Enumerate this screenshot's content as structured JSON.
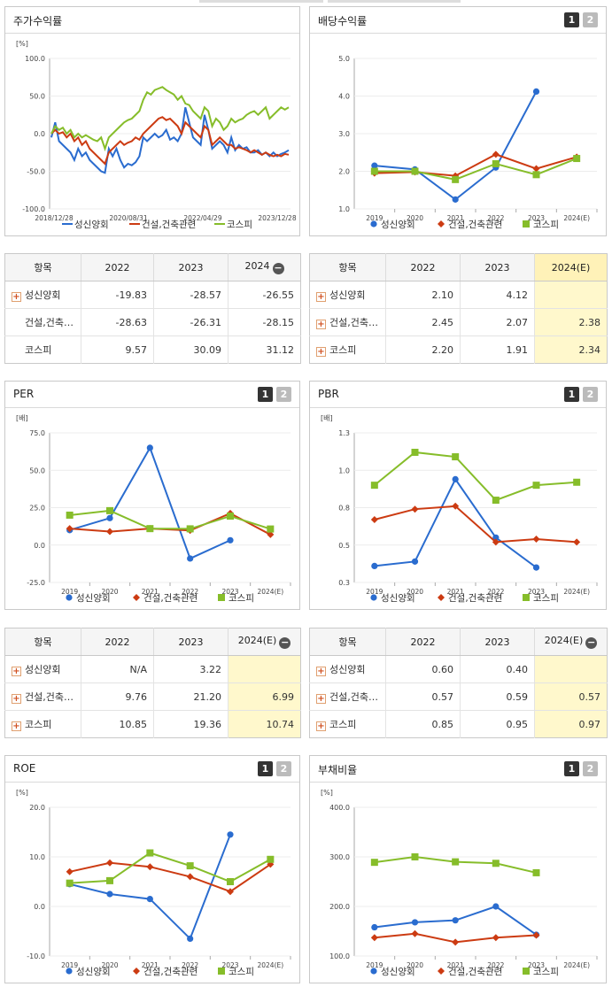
{
  "legend_series": [
    "성신양회",
    "건설,건축관련",
    "코스피"
  ],
  "colors": {
    "s1": "#2a6ccf",
    "s2": "#cc3b12",
    "s3": "#86bd2a"
  },
  "pager": [
    "1",
    "2"
  ],
  "panels": {
    "stock": {
      "title": "주가수익률"
    },
    "div": {
      "title": "배당수익률"
    },
    "per": {
      "title": "PER"
    },
    "pbr": {
      "title": "PBR"
    },
    "roe": {
      "title": "ROE"
    },
    "debt": {
      "title": "부채비율"
    }
  },
  "tables": {
    "stock": {
      "head": [
        "항목",
        "2022",
        "2023",
        "2024"
      ],
      "rows": [
        {
          "name": "성신양회",
          "vals": [
            "-19.83",
            "-28.57",
            "-26.55"
          ]
        },
        {
          "name": "건설,건축…",
          "vals": [
            "-28.63",
            "-26.31",
            "-28.15"
          ]
        },
        {
          "name": "코스피",
          "vals": [
            "9.57",
            "30.09",
            "31.12"
          ]
        }
      ]
    },
    "div": {
      "head": [
        "항목",
        "2022",
        "2023",
        "2024(E)"
      ],
      "rows": [
        {
          "name": "성신양회",
          "vals": [
            "2.10",
            "4.12",
            ""
          ]
        },
        {
          "name": "건설,건축…",
          "vals": [
            "2.45",
            "2.07",
            "2.38"
          ]
        },
        {
          "name": "코스피",
          "vals": [
            "2.20",
            "1.91",
            "2.34"
          ]
        }
      ]
    },
    "per": {
      "head": [
        "항목",
        "2022",
        "2023",
        "2024(E)"
      ],
      "rows": [
        {
          "name": "성신양회",
          "vals": [
            "N/A",
            "3.22",
            ""
          ]
        },
        {
          "name": "건설,건축…",
          "vals": [
            "9.76",
            "21.20",
            "6.99"
          ]
        },
        {
          "name": "코스피",
          "vals": [
            "10.85",
            "19.36",
            "10.74"
          ]
        }
      ]
    },
    "pbr": {
      "head": [
        "항목",
        "2022",
        "2023",
        "2024(E)"
      ],
      "rows": [
        {
          "name": "성신양회",
          "vals": [
            "0.60",
            "0.40",
            ""
          ]
        },
        {
          "name": "건설,건축…",
          "vals": [
            "0.57",
            "0.59",
            "0.57"
          ]
        },
        {
          "name": "코스피",
          "vals": [
            "0.85",
            "0.95",
            "0.97"
          ]
        }
      ]
    }
  },
  "chart_data": [
    {
      "id": "stock",
      "type": "line",
      "ylabel": "[%]",
      "ylim": [
        -100,
        100
      ],
      "yticks": [
        "100.0",
        "50.0",
        "0.0",
        "-50.0",
        "-100.0"
      ],
      "xlabels": [
        "2018/12/28",
        "2020/08/31",
        "2022/04/29",
        "2023/12/28"
      ],
      "series": [
        {
          "name": "성신양회",
          "values": [
            -5,
            15,
            -10,
            -15,
            -20,
            -25,
            -35,
            -20,
            -30,
            -25,
            -35,
            -40,
            -45,
            -50,
            -52,
            -20,
            -30,
            -20,
            -35,
            -45,
            -40,
            -42,
            -38,
            -30,
            -5,
            -10,
            -5,
            0,
            -5,
            -2,
            5,
            -8,
            -5,
            -10,
            0,
            35,
            15,
            -5,
            -10,
            -15,
            25,
            5,
            -20,
            -15,
            -10,
            -15,
            -25,
            -5,
            -22,
            -15,
            -20,
            -18,
            -25,
            -25,
            -22,
            -28,
            -25,
            -30,
            -25,
            -30,
            -27,
            -25,
            -22
          ]
        },
        {
          "name": "건설,건축관련",
          "values": [
            0,
            5,
            0,
            2,
            -5,
            0,
            -10,
            -5,
            -15,
            -10,
            -20,
            -25,
            -30,
            -35,
            -40,
            -25,
            -20,
            -15,
            -10,
            -15,
            -12,
            -10,
            -5,
            -8,
            0,
            5,
            10,
            15,
            20,
            22,
            18,
            20,
            15,
            10,
            0,
            15,
            10,
            5,
            0,
            -5,
            10,
            5,
            -15,
            -10,
            -5,
            -10,
            -15,
            -15,
            -20,
            -18,
            -20,
            -22,
            -25,
            -22,
            -25,
            -28,
            -25,
            -28,
            -30,
            -28,
            -30,
            -27,
            -28
          ]
        },
        {
          "name": "코스피",
          "values": [
            0,
            10,
            5,
            8,
            0,
            5,
            -5,
            0,
            -5,
            -2,
            -5,
            -8,
            -10,
            -5,
            -20,
            -5,
            0,
            5,
            10,
            15,
            18,
            20,
            25,
            30,
            45,
            55,
            52,
            58,
            60,
            62,
            58,
            55,
            52,
            45,
            50,
            40,
            38,
            30,
            25,
            20,
            35,
            30,
            10,
            20,
            15,
            5,
            10,
            20,
            15,
            18,
            20,
            25,
            28,
            30,
            25,
            30,
            35,
            20,
            25,
            30,
            35,
            32,
            35
          ]
        }
      ]
    },
    {
      "id": "div",
      "type": "line",
      "ylabel": "",
      "ylim": [
        1,
        5
      ],
      "yticks": [
        "5.0",
        "4.0",
        "3.0",
        "2.0",
        "1.0"
      ],
      "categories": [
        "2019",
        "2020",
        "2021",
        "2022",
        "2023",
        "2024(E)"
      ],
      "series": [
        {
          "name": "성신양회",
          "values": [
            2.15,
            2.05,
            1.25,
            2.1,
            4.12,
            null
          ]
        },
        {
          "name": "건설,건축관련",
          "values": [
            1.95,
            1.98,
            1.88,
            2.45,
            2.07,
            2.38
          ]
        },
        {
          "name": "코스피",
          "values": [
            2.0,
            2.0,
            1.78,
            2.2,
            1.91,
            2.34
          ]
        }
      ]
    },
    {
      "id": "per",
      "type": "line",
      "ylabel": "[배]",
      "ylim": [
        -25,
        75
      ],
      "yticks": [
        "75.0",
        "50.0",
        "25.0",
        "0.0",
        "-25.0"
      ],
      "categories": [
        "2019",
        "2020",
        "2021",
        "2022",
        "2023",
        "2024(E)"
      ],
      "series": [
        {
          "name": "성신양회",
          "values": [
            10,
            18,
            65,
            -9,
            3.22,
            null
          ]
        },
        {
          "name": "건설,건축관련",
          "values": [
            11,
            9,
            11,
            9.76,
            21.2,
            6.99
          ]
        },
        {
          "name": "코스피",
          "values": [
            20,
            23,
            11,
            10.85,
            19.36,
            10.74
          ]
        }
      ]
    },
    {
      "id": "pbr",
      "type": "line",
      "ylabel": "[배]",
      "ylim": [
        0.3,
        1.3
      ],
      "yticks": [
        "1.3",
        "1.0",
        "0.8",
        "0.5",
        "0.3"
      ],
      "categories": [
        "2019",
        "2020",
        "2021",
        "2022",
        "2023",
        "2024(E)"
      ],
      "series": [
        {
          "name": "성신양회",
          "values": [
            0.41,
            0.44,
            0.99,
            0.6,
            0.4,
            null
          ]
        },
        {
          "name": "건설,건축관련",
          "values": [
            0.72,
            0.79,
            0.81,
            0.57,
            0.59,
            0.57
          ]
        },
        {
          "name": "코스피",
          "values": [
            0.95,
            1.17,
            1.14,
            0.85,
            0.95,
            0.97
          ]
        }
      ]
    },
    {
      "id": "roe",
      "type": "line",
      "ylabel": "[%]",
      "ylim": [
        -10,
        20
      ],
      "yticks": [
        "20.0",
        "10.0",
        "0.0",
        "-10.0"
      ],
      "categories": [
        "2019",
        "2020",
        "2021",
        "2022",
        "2023",
        "2024(E)"
      ],
      "series": [
        {
          "name": "성신양회",
          "values": [
            4.5,
            2.5,
            1.5,
            -6.5,
            14.5,
            null
          ]
        },
        {
          "name": "건설,건축관련",
          "values": [
            7,
            8.8,
            8,
            6,
            3,
            8.5
          ]
        },
        {
          "name": "코스피",
          "values": [
            4.7,
            5.2,
            10.8,
            8.2,
            5,
            9.5
          ]
        }
      ]
    },
    {
      "id": "debt",
      "type": "line",
      "ylabel": "[%]",
      "ylim": [
        100,
        400
      ],
      "yticks": [
        "400.0",
        "300.0",
        "200.0",
        "100.0"
      ],
      "categories": [
        "2019",
        "2020",
        "2021",
        "2022",
        "2023",
        "2024(E)"
      ],
      "series": [
        {
          "name": "성신양회",
          "values": [
            158,
            168,
            172,
            200,
            143,
            null
          ]
        },
        {
          "name": "건설,건축관련",
          "values": [
            137,
            145,
            128,
            137,
            142,
            null
          ]
        },
        {
          "name": "코스피",
          "values": [
            289,
            300,
            290,
            287,
            268,
            null
          ]
        }
      ]
    }
  ]
}
